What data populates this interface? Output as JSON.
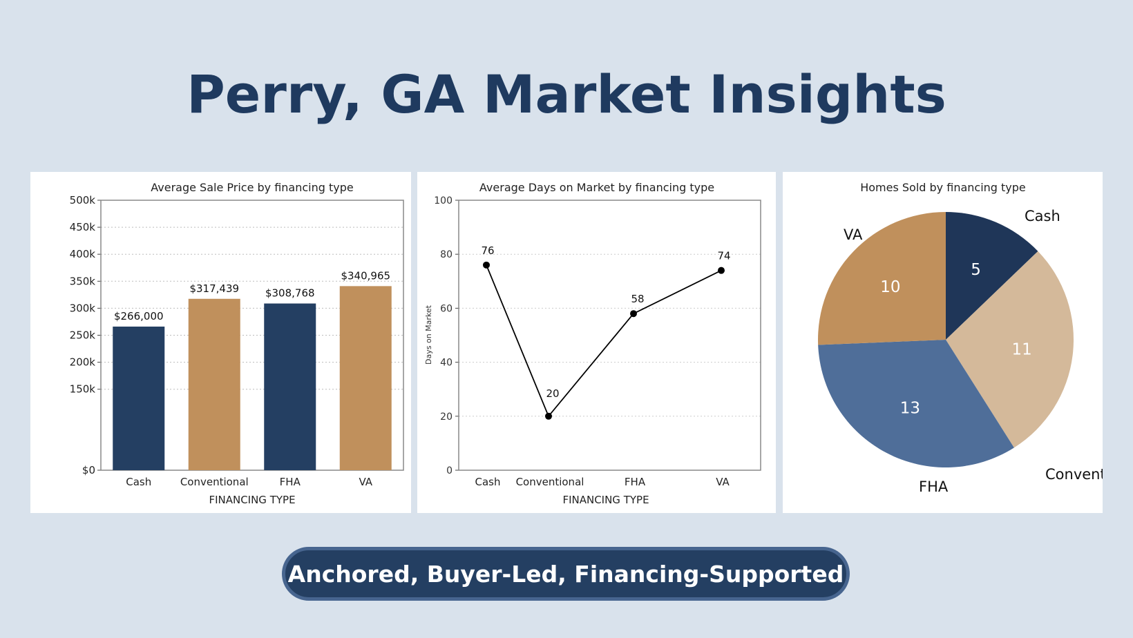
{
  "page": {
    "title": "Perry, GA Market Insights",
    "banner": "Anchored, Buyer-Led, Financing-Supported"
  },
  "colors": {
    "background": "#d9e2ec",
    "navy": "#243f62",
    "tan": "#c0905c",
    "light_tan": "#d4b99a",
    "steel_blue": "#4f6e99",
    "dark_navy": "#1f3658"
  },
  "chart_data": [
    {
      "type": "bar",
      "title": "Average Sale Price  by financing type",
      "xlabel": "FINANCING TYPE",
      "ylabel": "",
      "categories": [
        "Cash",
        "Conventional",
        "FHA",
        "VA"
      ],
      "values": [
        266000,
        317439,
        308768,
        340965
      ],
      "data_labels": [
        "$266,000",
        "$317,439",
        "$308,768",
        "$340,965"
      ],
      "bar_colors": [
        "#243f62",
        "#c0905c",
        "#243f62",
        "#c0905c"
      ],
      "yticks": [
        0,
        150000,
        200000,
        250000,
        300000,
        350000,
        400000,
        450000,
        500000
      ],
      "ytick_labels": [
        "$0",
        "150k",
        "200k",
        "250k",
        "300k",
        "350k",
        "400k",
        "450k",
        "500k"
      ],
      "ylim": [
        0,
        500000
      ],
      "grid": true
    },
    {
      "type": "line",
      "title": "Average Days on Market  by financing type",
      "xlabel": "FINANCING TYPE",
      "ylabel": "Days on Market",
      "categories": [
        "Cash",
        "Conventional",
        "FHA",
        "VA"
      ],
      "values": [
        76,
        20,
        58,
        74
      ],
      "data_labels": [
        "76",
        "20",
        "58",
        "74"
      ],
      "yticks": [
        0,
        20,
        40,
        60,
        80,
        100
      ],
      "ytick_labels": [
        "0",
        "20",
        "40",
        "60",
        "80",
        "100"
      ],
      "ylim": [
        0,
        100
      ],
      "grid": true
    },
    {
      "type": "pie",
      "title": "Homes Sold by financing type",
      "slices": [
        {
          "label": "Cash",
          "value": 5,
          "color": "#1f3658"
        },
        {
          "label": "Conventional",
          "value": 11,
          "color": "#d4b99a"
        },
        {
          "label": "FHA",
          "value": 13,
          "color": "#4f6e99"
        },
        {
          "label": "VA",
          "value": 10,
          "color": "#c0905c"
        }
      ]
    }
  ]
}
